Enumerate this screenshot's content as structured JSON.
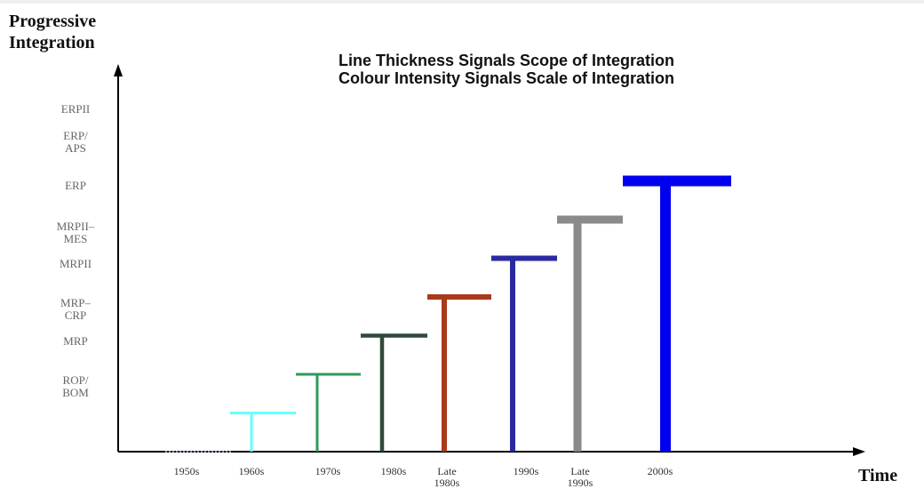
{
  "y_axis_title": [
    "Progressive",
    "Integration"
  ],
  "x_axis_title": "Time",
  "headline": [
    "Line Thickness Signals Scope of Integration",
    "Colour Intensity Signals Scale of Integration"
  ],
  "levels": [
    [
      "ROP/",
      "BOM"
    ],
    [
      "MRP"
    ],
    [
      "MRP–",
      "CRP"
    ],
    [
      "MRPII"
    ],
    [
      "MRPII–",
      "MES"
    ],
    [
      "ERP"
    ],
    [
      "ERP/",
      "APS"
    ],
    [
      "ERPII"
    ]
  ],
  "time_ticks": [
    [
      "1950s"
    ],
    [
      "1960s"
    ],
    [
      "1970s"
    ],
    [
      "1980s"
    ],
    [
      "Late",
      "1980s"
    ],
    [
      "1990s"
    ],
    [
      "Late",
      "1990s"
    ],
    [
      "2000s"
    ]
  ],
  "chart_data": {
    "type": "bar",
    "categories": [
      "1950s",
      "1960s",
      "1970s",
      "1980s",
      "Late 1980s",
      "1990s",
      "Late 1990s",
      "2000s"
    ],
    "series": [
      {
        "values": [
          "ROP/BOM",
          "MRP",
          "MRP–CRP",
          "MRPII",
          "MRPII–MES",
          "ERP",
          "ERP/APS",
          "ERPII"
        ],
        "level_index": [
          1,
          2,
          3,
          4,
          5,
          6,
          7,
          8
        ],
        "colors": [
          "#c9a8e8",
          "#66ffff",
          "#2e9a5a",
          "#2f4a3a",
          "#a83a1c",
          "#2a2aa0",
          "#8a8a8a",
          "#0000ee"
        ],
        "thickness_rank": [
          1,
          2,
          2,
          3,
          4,
          4,
          6,
          8
        ],
        "dashed": [
          true,
          false,
          false,
          false,
          false,
          false,
          false,
          false
        ]
      }
    ],
    "ylim": [
      0,
      8.6
    ],
    "legend": "none",
    "grid": false
  }
}
